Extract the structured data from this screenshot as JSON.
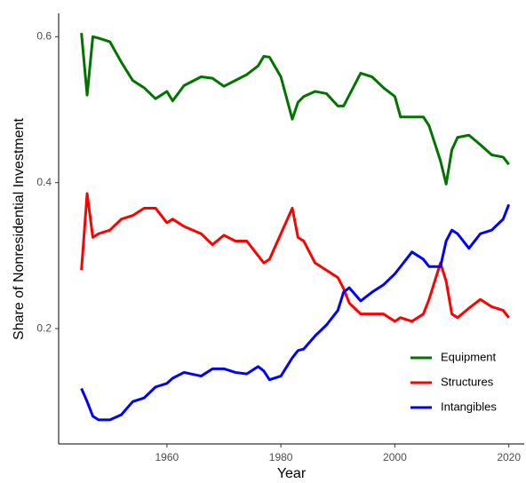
{
  "chart_data": {
    "type": "line",
    "x_label": "Year",
    "y_label": "Share of Nonresidential Investment",
    "x": [
      1945,
      1946,
      1947,
      1948,
      1950,
      1952,
      1954,
      1956,
      1958,
      1960,
      1961,
      1963,
      1966,
      1968,
      1970,
      1972,
      1974,
      1976,
      1977,
      1978,
      1980,
      1982,
      1983,
      1984,
      1986,
      1988,
      1990,
      1991,
      1992,
      1994,
      1996,
      1998,
      2000,
      2001,
      2003,
      2005,
      2006,
      2008,
      2009,
      2010,
      2011,
      2013,
      2015,
      2017,
      2019,
      2020
    ],
    "series": [
      {
        "name": "Equipment",
        "color": "#007300",
        "values": [
          0.605,
          0.52,
          0.6,
          0.598,
          0.593,
          0.565,
          0.54,
          0.53,
          0.515,
          0.525,
          0.512,
          0.533,
          0.545,
          0.543,
          0.532,
          0.54,
          0.548,
          0.56,
          0.573,
          0.572,
          0.545,
          0.487,
          0.51,
          0.518,
          0.525,
          0.522,
          0.505,
          0.505,
          0.52,
          0.55,
          0.545,
          0.53,
          0.518,
          0.49,
          0.49,
          0.49,
          0.478,
          0.43,
          0.398,
          0.445,
          0.462,
          0.465,
          0.452,
          0.438,
          0.435,
          0.425
        ]
      },
      {
        "name": "Structures",
        "color": "#ff0000",
        "values": [
          0.28,
          0.385,
          0.325,
          0.33,
          0.335,
          0.35,
          0.355,
          0.365,
          0.365,
          0.345,
          0.35,
          0.34,
          0.33,
          0.315,
          0.328,
          0.32,
          0.32,
          0.3,
          0.29,
          0.295,
          0.33,
          0.365,
          0.325,
          0.32,
          0.29,
          0.28,
          0.27,
          0.255,
          0.235,
          0.22,
          0.22,
          0.22,
          0.21,
          0.215,
          0.21,
          0.22,
          0.24,
          0.29,
          0.265,
          0.22,
          0.215,
          0.228,
          0.24,
          0.23,
          0.225,
          0.215
        ]
      },
      {
        "name": "Intangibles",
        "color": "#0000ff",
        "values": [
          0.118,
          0.1,
          0.08,
          0.075,
          0.075,
          0.082,
          0.1,
          0.105,
          0.12,
          0.125,
          0.132,
          0.14,
          0.135,
          0.145,
          0.145,
          0.14,
          0.138,
          0.148,
          0.142,
          0.13,
          0.135,
          0.16,
          0.17,
          0.172,
          0.19,
          0.205,
          0.225,
          0.25,
          0.256,
          0.238,
          0.25,
          0.26,
          0.275,
          0.285,
          0.305,
          0.295,
          0.285,
          0.285,
          0.32,
          0.335,
          0.33,
          0.31,
          0.33,
          0.335,
          0.35,
          0.37
        ]
      }
    ],
    "xlim": [
      1941,
      2022.7
    ],
    "ylim": [
      0.042,
      0.632
    ],
    "xticks": [
      1960,
      1980,
      2000,
      2020
    ],
    "yticks": [
      0.2,
      0.4,
      0.6
    ],
    "grid": false,
    "legend_position": "bottom-right"
  }
}
